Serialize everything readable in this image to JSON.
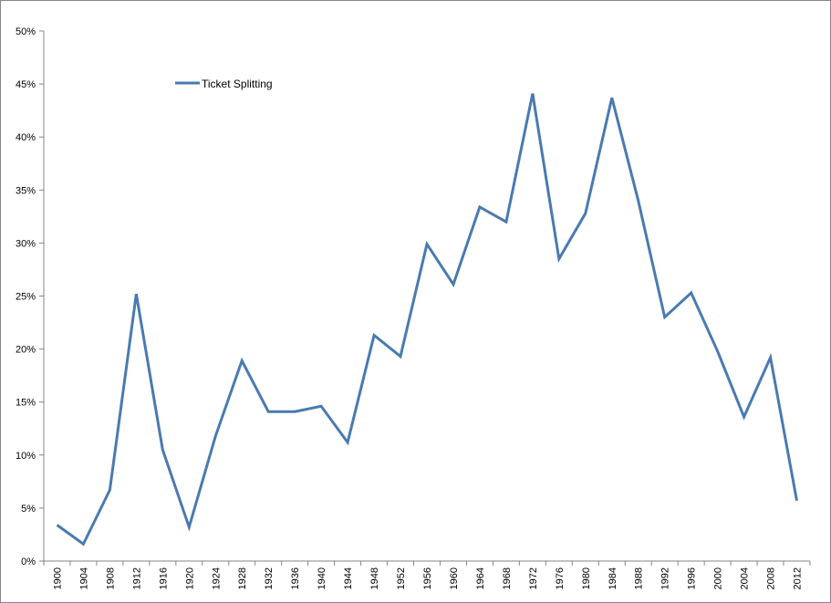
{
  "chart_data": {
    "type": "line",
    "title": "",
    "xlabel": "",
    "ylabel": "",
    "x": [
      "1900",
      "1904",
      "1908",
      "1912",
      "1916",
      "1920",
      "1924",
      "1928",
      "1932",
      "1936",
      "1940",
      "1944",
      "1948",
      "1952",
      "1956",
      "1960",
      "1964",
      "1968",
      "1972",
      "1976",
      "1980",
      "1984",
      "1988",
      "1992",
      "1996",
      "2000",
      "2004",
      "2008",
      "2012"
    ],
    "series": [
      {
        "name": "Ticket Splitting",
        "color": "#4a7ab0",
        "values": [
          3.4,
          1.6,
          6.7,
          25.2,
          10.5,
          3.2,
          11.8,
          18.9,
          14.1,
          14.1,
          14.6,
          11.2,
          21.3,
          19.3,
          29.9,
          26.1,
          33.4,
          32.0,
          44.1,
          28.5,
          32.8,
          43.7,
          34.0,
          23.0,
          25.3,
          19.8,
          13.6,
          19.2,
          5.7
        ]
      }
    ],
    "ylim": [
      0,
      50
    ],
    "y_ticks": [
      "0%",
      "5%",
      "10%",
      "15%",
      "20%",
      "25%",
      "30%",
      "35%",
      "40%",
      "45%",
      "50%"
    ],
    "grid": false,
    "legend_position": "top-left"
  }
}
